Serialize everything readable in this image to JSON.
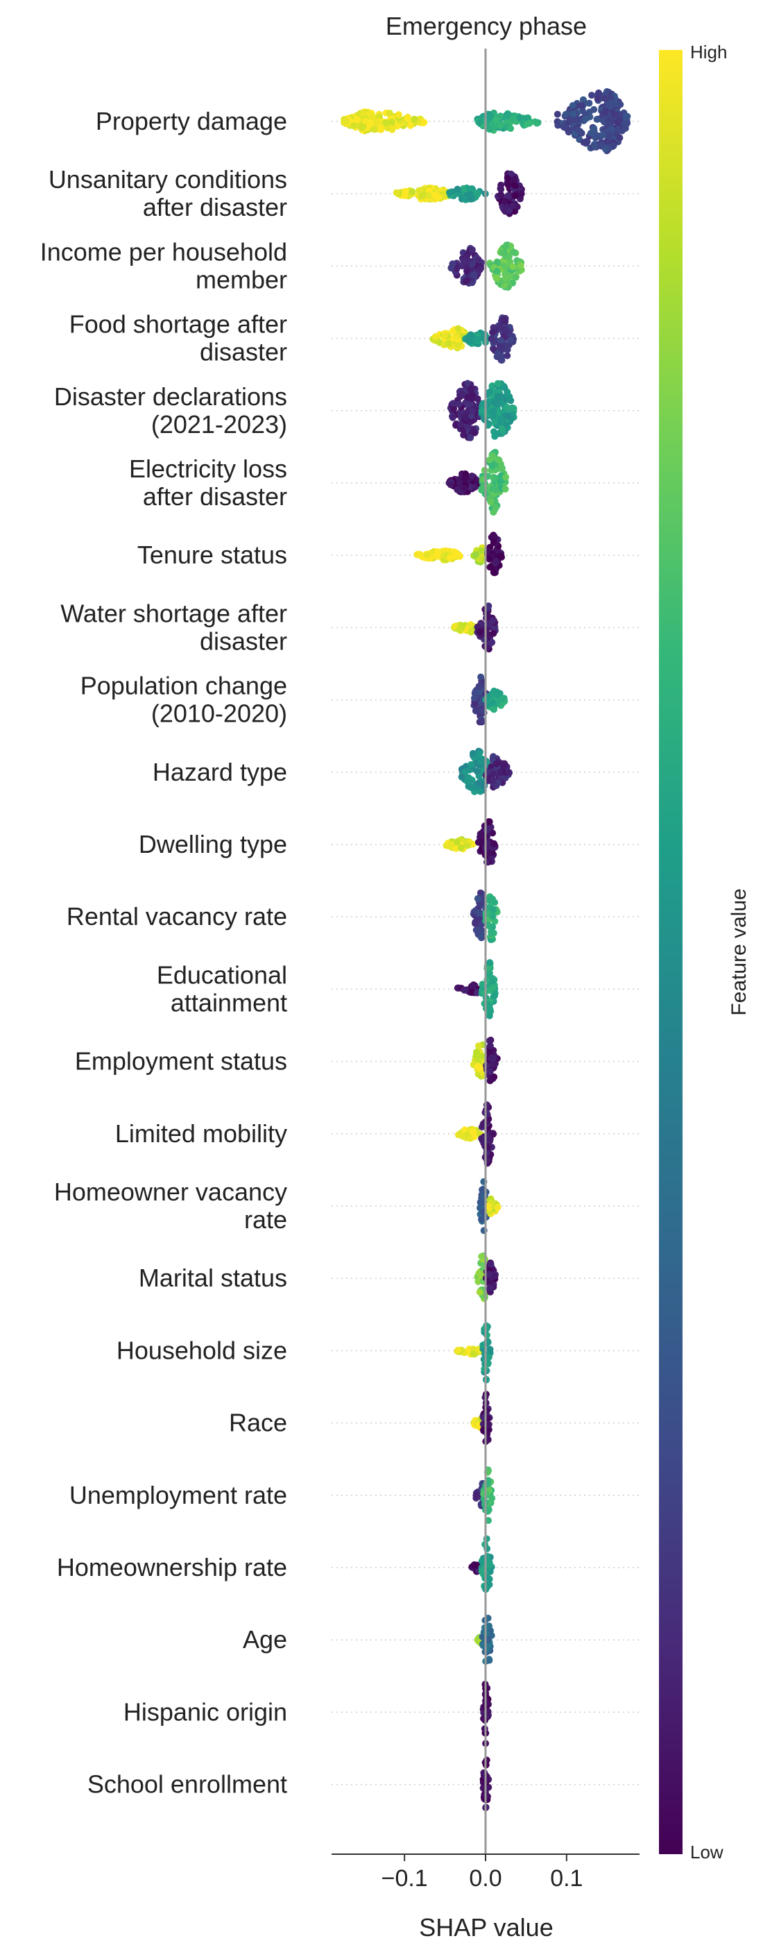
{
  "chart_data": {
    "type": "scatter",
    "subtype": "shap-beeswarm",
    "title": "Emergency phase",
    "xlabel": "SHAP value",
    "xlim": [
      -0.19,
      0.19
    ],
    "xticks": [
      {
        "value": -0.1,
        "label": "−0.1"
      },
      {
        "value": 0.0,
        "label": "0.0"
      },
      {
        "value": 0.1,
        "label": "0.1"
      }
    ],
    "colorbar": {
      "title": "Feature value",
      "high_label": "High",
      "low_label": "Low",
      "colormap": "viridis",
      "colors": [
        "#440154",
        "#482878",
        "#3e4a89",
        "#31688e",
        "#26828e",
        "#1f9e89",
        "#35b779",
        "#6ece58",
        "#b5de2b",
        "#fde725"
      ]
    },
    "zero_line_color": "#999999",
    "features": [
      {
        "name": "Property damage",
        "label_lines": [
          "Property damage"
        ],
        "clusters": [
          {
            "x_min": -0.175,
            "x_max": -0.075,
            "center": -0.145,
            "half_width": 0.01,
            "value": 0.98
          },
          {
            "x_min": -0.01,
            "x_max": 0.065,
            "center": 0.01,
            "half_width": 0.009,
            "value": 0.62
          },
          {
            "x_min": 0.088,
            "x_max": 0.175,
            "center": 0.15,
            "half_width": 0.03,
            "value": 0.22
          }
        ]
      },
      {
        "name": "Unsanitary conditions after disaster",
        "label_lines": [
          "Unsanitary conditions",
          "after disaster"
        ],
        "clusters": [
          {
            "x_min": -0.11,
            "x_max": -0.04,
            "center": -0.07,
            "half_width": 0.006,
            "value": 0.97
          },
          {
            "x_min": -0.045,
            "x_max": 0.0,
            "center": -0.025,
            "half_width": 0.006,
            "value": 0.55
          },
          {
            "x_min": 0.015,
            "x_max": 0.045,
            "center": 0.03,
            "half_width": 0.022,
            "value": 0.05
          }
        ]
      },
      {
        "name": "Income per household member",
        "label_lines": [
          "Income per household",
          "member"
        ],
        "clusters": [
          {
            "x_min": -0.045,
            "x_max": -0.005,
            "center": -0.02,
            "half_width": 0.018,
            "value": 0.12
          },
          {
            "x_min": 0.005,
            "x_max": 0.045,
            "center": 0.025,
            "half_width": 0.022,
            "value": 0.75
          }
        ]
      },
      {
        "name": "Food shortage after disaster",
        "label_lines": [
          "Food shortage after",
          "disaster"
        ],
        "clusters": [
          {
            "x_min": -0.065,
            "x_max": -0.02,
            "center": -0.035,
            "half_width": 0.01,
            "value": 0.97
          },
          {
            "x_min": -0.025,
            "x_max": 0.005,
            "center": -0.01,
            "half_width": 0.007,
            "value": 0.55
          },
          {
            "x_min": 0.005,
            "x_max": 0.035,
            "center": 0.02,
            "half_width": 0.022,
            "value": 0.15
          }
        ]
      },
      {
        "name": "Disaster declarations (2021-2023)",
        "label_lines": [
          "Disaster declarations",
          "(2021-2023)"
        ],
        "clusters": [
          {
            "x_min": -0.045,
            "x_max": -0.005,
            "center": -0.02,
            "half_width": 0.028,
            "value": 0.1
          },
          {
            "x_min": -0.005,
            "x_max": 0.035,
            "center": 0.015,
            "half_width": 0.03,
            "value": 0.55
          }
        ]
      },
      {
        "name": "Electricity loss after disaster",
        "label_lines": [
          "Electricity loss",
          "after disaster"
        ],
        "clusters": [
          {
            "x_min": -0.045,
            "x_max": -0.005,
            "center": -0.025,
            "half_width": 0.01,
            "value": 0.05
          },
          {
            "x_min": -0.005,
            "x_max": 0.025,
            "center": 0.01,
            "half_width": 0.032,
            "value": 0.7
          }
        ]
      },
      {
        "name": "Tenure status",
        "label_lines": [
          "Tenure status"
        ],
        "clusters": [
          {
            "x_min": -0.085,
            "x_max": -0.03,
            "center": -0.05,
            "half_width": 0.005,
            "value": 0.98
          },
          {
            "x_min": -0.015,
            "x_max": 0.005,
            "center": -0.005,
            "half_width": 0.008,
            "value": 0.9
          },
          {
            "x_min": 0.002,
            "x_max": 0.02,
            "center": 0.01,
            "half_width": 0.022,
            "value": 0.02
          }
        ]
      },
      {
        "name": "Water shortage after disaster",
        "label_lines": [
          "Water shortage after",
          "disaster"
        ],
        "clusters": [
          {
            "x_min": -0.04,
            "x_max": -0.01,
            "center": -0.02,
            "half_width": 0.005,
            "value": 0.95
          },
          {
            "x_min": -0.01,
            "x_max": 0.012,
            "center": 0.003,
            "half_width": 0.022,
            "value": 0.08
          }
        ]
      },
      {
        "name": "Population change (2010-2020)",
        "label_lines": [
          "Population change",
          "(2010-2020)"
        ],
        "clusters": [
          {
            "x_min": -0.015,
            "x_max": 0.003,
            "center": -0.005,
            "half_width": 0.024,
            "value": 0.18
          },
          {
            "x_min": 0.0,
            "x_max": 0.025,
            "center": 0.01,
            "half_width": 0.01,
            "value": 0.6
          }
        ]
      },
      {
        "name": "Hazard type",
        "label_lines": [
          "Hazard type"
        ],
        "clusters": [
          {
            "x_min": -0.03,
            "x_max": 0.005,
            "center": -0.008,
            "half_width": 0.022,
            "value": 0.5
          },
          {
            "x_min": 0.0,
            "x_max": 0.03,
            "center": 0.01,
            "half_width": 0.016,
            "value": 0.12
          }
        ]
      },
      {
        "name": "Dwelling type",
        "label_lines": [
          "Dwelling type"
        ],
        "clusters": [
          {
            "x_min": -0.05,
            "x_max": -0.015,
            "center": -0.03,
            "half_width": 0.005,
            "value": 0.95
          },
          {
            "x_min": -0.01,
            "x_max": 0.012,
            "center": 0.003,
            "half_width": 0.024,
            "value": 0.05
          }
        ]
      },
      {
        "name": "Rental vacancy rate",
        "label_lines": [
          "Rental vacancy rate"
        ],
        "clusters": [
          {
            "x_min": -0.015,
            "x_max": 0.003,
            "center": -0.005,
            "half_width": 0.026,
            "value": 0.2
          },
          {
            "x_min": 0.0,
            "x_max": 0.015,
            "center": 0.007,
            "half_width": 0.024,
            "value": 0.65
          }
        ]
      },
      {
        "name": "Educational attainment",
        "label_lines": [
          "Educational",
          "attainment"
        ],
        "clusters": [
          {
            "x_min": -0.035,
            "x_max": -0.005,
            "center": -0.015,
            "half_width": 0.005,
            "value": 0.05
          },
          {
            "x_min": -0.005,
            "x_max": 0.012,
            "center": 0.005,
            "half_width": 0.028,
            "value": 0.6
          }
        ]
      },
      {
        "name": "Employment status",
        "label_lines": [
          "Employment status"
        ],
        "clusters": [
          {
            "x_min": -0.015,
            "x_max": 0.003,
            "center": -0.005,
            "half_width": 0.018,
            "value": 0.95
          },
          {
            "x_min": 0.0,
            "x_max": 0.015,
            "center": 0.006,
            "half_width": 0.022,
            "value": 0.05
          }
        ]
      },
      {
        "name": "Limited mobility",
        "label_lines": [
          "Limited mobility"
        ],
        "clusters": [
          {
            "x_min": -0.035,
            "x_max": -0.005,
            "center": -0.018,
            "half_width": 0.005,
            "value": 0.95
          },
          {
            "x_min": -0.005,
            "x_max": 0.01,
            "center": 0.002,
            "half_width": 0.03,
            "value": 0.05
          }
        ]
      },
      {
        "name": "Homeowner vacancy rate",
        "label_lines": [
          "Homeowner vacancy",
          "rate"
        ],
        "clusters": [
          {
            "x_min": -0.008,
            "x_max": 0.003,
            "center": -0.003,
            "half_width": 0.026,
            "value": 0.3
          },
          {
            "x_min": 0.002,
            "x_max": 0.015,
            "center": 0.007,
            "half_width": 0.008,
            "value": 0.95
          }
        ]
      },
      {
        "name": "Marital status",
        "label_lines": [
          "Marital status"
        ],
        "clusters": [
          {
            "x_min": -0.01,
            "x_max": 0.003,
            "center": -0.003,
            "half_width": 0.024,
            "value": 0.8
          },
          {
            "x_min": 0.0,
            "x_max": 0.012,
            "center": 0.005,
            "half_width": 0.016,
            "value": 0.05
          }
        ]
      },
      {
        "name": "Household size",
        "label_lines": [
          "Household size"
        ],
        "clusters": [
          {
            "x_min": -0.035,
            "x_max": -0.005,
            "center": -0.015,
            "half_width": 0.004,
            "value": 0.95
          },
          {
            "x_min": -0.004,
            "x_max": 0.006,
            "center": 0.001,
            "half_width": 0.03,
            "value": 0.55
          }
        ]
      },
      {
        "name": "Race",
        "label_lines": [
          "Race"
        ],
        "clusters": [
          {
            "x_min": -0.015,
            "x_max": -0.002,
            "center": -0.008,
            "half_width": 0.005,
            "value": 0.95
          },
          {
            "x_min": -0.003,
            "x_max": 0.005,
            "center": 0.001,
            "half_width": 0.03,
            "value": 0.05
          }
        ]
      },
      {
        "name": "Unemployment rate",
        "label_lines": [
          "Unemployment rate"
        ],
        "clusters": [
          {
            "x_min": -0.012,
            "x_max": 0.001,
            "center": -0.004,
            "half_width": 0.012,
            "value": 0.15
          },
          {
            "x_min": -0.003,
            "x_max": 0.008,
            "center": 0.003,
            "half_width": 0.026,
            "value": 0.7
          }
        ]
      },
      {
        "name": "Homeownership rate",
        "label_lines": [
          "Homeownership rate"
        ],
        "clusters": [
          {
            "x_min": -0.018,
            "x_max": -0.005,
            "center": -0.01,
            "half_width": 0.004,
            "value": 0.05
          },
          {
            "x_min": -0.005,
            "x_max": 0.008,
            "center": 0.002,
            "half_width": 0.03,
            "value": 0.55
          }
        ]
      },
      {
        "name": "Age",
        "label_lines": [
          "Age"
        ],
        "clusters": [
          {
            "x_min": -0.01,
            "x_max": 0.0,
            "center": -0.004,
            "half_width": 0.004,
            "value": 0.85
          },
          {
            "x_min": -0.004,
            "x_max": 0.008,
            "center": 0.002,
            "half_width": 0.026,
            "value": 0.35
          }
        ]
      },
      {
        "name": "Hispanic origin",
        "label_lines": [
          "Hispanic origin"
        ],
        "clusters": [
          {
            "x_min": -0.003,
            "x_max": 0.004,
            "center": 0.0,
            "half_width": 0.032,
            "value": 0.02
          }
        ]
      },
      {
        "name": "School enrollment",
        "label_lines": [
          "School enrollment"
        ],
        "clusters": [
          {
            "x_min": -0.003,
            "x_max": 0.004,
            "center": 0.0,
            "half_width": 0.032,
            "value": 0.02
          }
        ]
      }
    ]
  }
}
